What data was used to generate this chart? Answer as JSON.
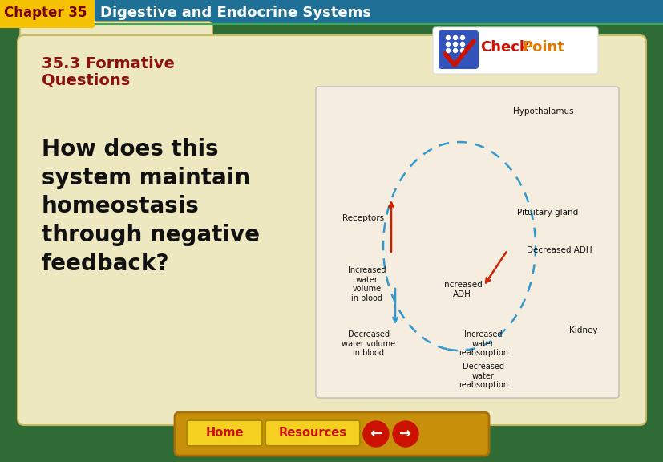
{
  "header_bg": "#1e7096",
  "header_text": "Digestive and Endocrine Systems",
  "header_fontsize": 13,
  "chapter_tab_bg": "#f5c200",
  "chapter_tab_text": "Chapter 35",
  "chapter_tab_fontsize": 12,
  "outer_bg": "#2e6b35",
  "folder_bg": "#ede8c0",
  "folder_tab_color": "#ddd8a8",
  "section_title_line1": "35.3 Formative",
  "section_title_line2": "Questions",
  "section_title_color": "#8b1111",
  "section_title_fontsize": 14,
  "question_text": "How does this\nsystem maintain\nhomeostasis\nthrough negative\nfeedback?",
  "question_fontsize": 20,
  "question_color": "#111111",
  "nav_bar_bg": "#c8900a",
  "nav_home_text": "Home",
  "nav_resources_text": "Resources",
  "nav_btn_color": "#f5d020",
  "nav_btn_text_color": "#cc1100",
  "nav_arrow_color": "#cc1100",
  "checkpoint_text_check": "Check",
  "checkpoint_text_point": "Point",
  "diagram_bg": "#f5ede0",
  "diagram_border": "#bbbbbb",
  "diagram_label_color": "#111111",
  "diagram_dashed_color": "#3399cc",
  "diagram_arrow_color": "#cc2200"
}
